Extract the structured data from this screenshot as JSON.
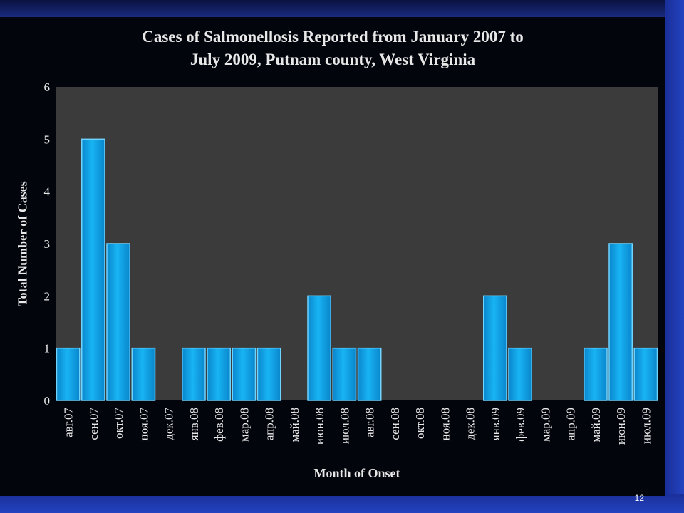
{
  "slide": {
    "number": "12"
  },
  "colors": {
    "plot_bg": "#3b3b3b",
    "bar_fill": "#10a6ea",
    "bar_edge": "#6fd4ff",
    "text": "#e8e8e8"
  },
  "chart_data": {
    "type": "bar",
    "title": "Cases of  Salmonellosis Reported from January 2007 to\nJuly 2009,  Putnam county, West Virginia",
    "xlabel": "Month of Onset",
    "ylabel": "Total Number of Cases",
    "ylim": [
      0,
      6
    ],
    "yticks": [
      0,
      1,
      2,
      3,
      4,
      5,
      6
    ],
    "grid": false,
    "categories": [
      "авг.07",
      "сен.07",
      "окт.07",
      "ноя.07",
      "дек.07",
      "янв.08",
      "фев.08",
      "мар.08",
      "апр.08",
      "май.08",
      "июн.08",
      "июл.08",
      "авг.08",
      "сен.08",
      "окт.08",
      "ноя.08",
      "дек.08",
      "янв.09",
      "фев.09",
      "мар.09",
      "апр.09",
      "май.09",
      "июн.09",
      "июл.09"
    ],
    "values": [
      1,
      5,
      3,
      1,
      0,
      1,
      1,
      1,
      1,
      0,
      2,
      1,
      1,
      0,
      0,
      0,
      0,
      2,
      1,
      0,
      0,
      1,
      3,
      1
    ]
  }
}
